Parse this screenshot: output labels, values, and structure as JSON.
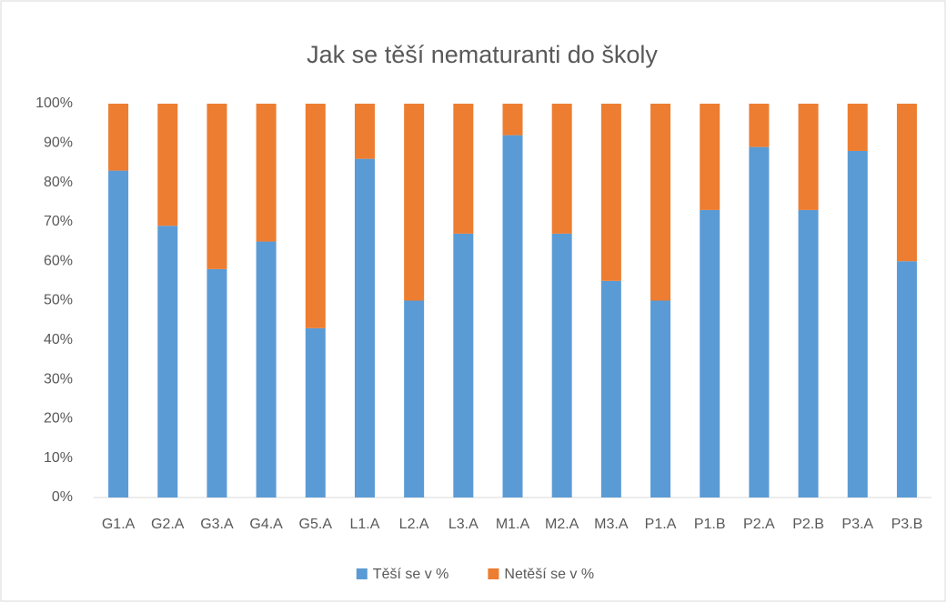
{
  "chart_data": {
    "type": "stacked_bar",
    "title": "Jak se těší nematuranti do školy",
    "categories": [
      "G1.A",
      "G2.A",
      "G3.A",
      "G4.A",
      "G5.A",
      "L1.A",
      "L2.A",
      "L3.A",
      "M1.A",
      "M2.A",
      "M3.A",
      "P1.A",
      "P1.B",
      "P2.A",
      "P2.B",
      "P3.A",
      "P3.B"
    ],
    "series": [
      {
        "name": "Těší se v %",
        "color": "#5b9bd5",
        "values": [
          83,
          69,
          58,
          65,
          43,
          86,
          50,
          67,
          92,
          67,
          55,
          50,
          73,
          89,
          73,
          88,
          60
        ]
      },
      {
        "name": "Netěší se v %",
        "color": "#ed7d31",
        "values": [
          17,
          31,
          42,
          35,
          57,
          14,
          50,
          33,
          8,
          33,
          45,
          50,
          27,
          11,
          27,
          12,
          40
        ]
      }
    ],
    "ylim": [
      0,
      100
    ],
    "yticks": [
      {
        "value": 0,
        "label": "0%"
      },
      {
        "value": 10,
        "label": "10%"
      },
      {
        "value": 20,
        "label": "20%"
      },
      {
        "value": 30,
        "label": "30%"
      },
      {
        "value": 40,
        "label": "40%"
      },
      {
        "value": 50,
        "label": "50%"
      },
      {
        "value": 60,
        "label": "60%"
      },
      {
        "value": 70,
        "label": "70%"
      },
      {
        "value": 80,
        "label": "80%"
      },
      {
        "value": 90,
        "label": "90%"
      },
      {
        "value": 100,
        "label": "100%"
      }
    ],
    "grid": false,
    "legend": "bottom"
  }
}
